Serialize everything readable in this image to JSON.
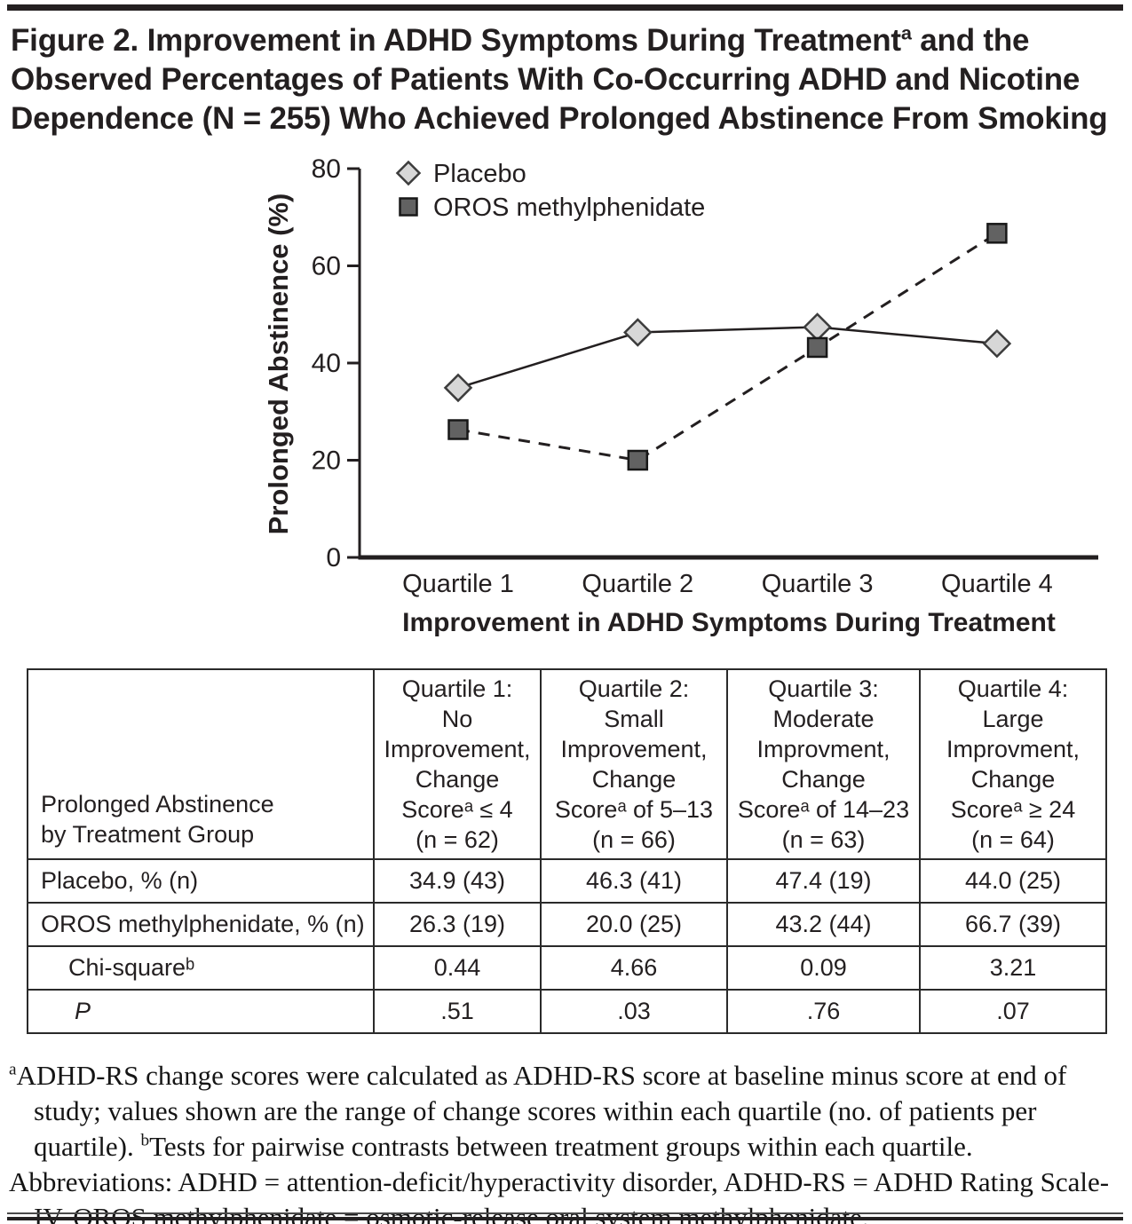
{
  "figure": {
    "title_part1": "Figure 2. Improvement in ADHD Symptoms During Treatment",
    "title_sup": "a",
    "title_part2": " and the Observed Percentages of Patients With Co-Occurring ADHD and Nicotine Dependence (N = 255) Who Achieved Prolonged Abstinence From Smoking"
  },
  "colors": {
    "text": "#231f20",
    "axis": "#231f20",
    "placebo_fill": "#d7d7d7",
    "placebo_stroke": "#3c3c3c",
    "oros_fill": "#626262",
    "oros_stroke": "#181818"
  },
  "chart_data": {
    "type": "line",
    "categories": [
      "Quartile 1",
      "Quartile 2",
      "Quartile 3",
      "Quartile 4"
    ],
    "series": [
      {
        "name": "Placebo",
        "values": [
          34.9,
          46.3,
          47.4,
          44.0
        ],
        "marker": "diamond",
        "line": "solid"
      },
      {
        "name": "OROS methylphenidate",
        "values": [
          26.3,
          20.0,
          43.2,
          66.7
        ],
        "marker": "square",
        "line": "dashed"
      }
    ],
    "xlabel": "Improvement in ADHD Symptoms During Treatment",
    "ylabel": "Prolonged Abstinence (%)",
    "ylim": [
      0,
      80
    ],
    "yticks": [
      0,
      20,
      40,
      60,
      80
    ],
    "grid": false,
    "legend_position": "upper-left"
  },
  "table": {
    "stub_header": "Prolonged Abstinence\nby Treatment Group",
    "col_headers": [
      "Quartile 1:\nNo\nImprovement,\nChange\nScoreᵃ ≤ 4\n(n = 62)",
      "Quartile 2:\nSmall\nImprovement,\nChange\nScoreᵃ of 5–13\n(n = 66)",
      "Quartile 3:\nModerate\nImprovment,\nChange\nScoreᵃ of 14–23\n(n = 63)",
      "Quartile 4:\nLarge\nImprovment,\nChange\nScoreᵃ ≥ 24\n(n = 64)"
    ],
    "rows": [
      {
        "label": "Placebo, % (n)",
        "values": [
          "34.9 (43)",
          "46.3 (41)",
          "47.4 (19)",
          "44.0 (25)"
        ]
      },
      {
        "label": "OROS methylphenidate, % (n)",
        "values": [
          "26.3 (19)",
          "20.0 (25)",
          "43.2 (44)",
          "66.7 (39)"
        ]
      },
      {
        "label": "Chi-squareᵇ",
        "values": [
          "0.44",
          "4.66",
          "0.09",
          "3.21"
        ]
      },
      {
        "label": "P",
        "values": [
          ".51",
          ".03",
          ".76",
          ".07"
        ]
      }
    ]
  },
  "footnotes": {
    "sup_a": "a",
    "note_a": "ADHD-RS change scores were calculated as ADHD-RS score at baseline minus score at end of study; values shown are the range of change scores within each quartile (no. of patients per quartile).  ",
    "sup_b": "b",
    "note_b": "Tests for pairwise contrasts between treatment groups within each quartile.",
    "abbreviations": "Abbreviations: ADHD = attention-deficit/hyperactivity disorder, ADHD-RS = ADHD Rating Scale-IV, OROS methylphenidate = osmotic-release oral system methylphenidate."
  }
}
